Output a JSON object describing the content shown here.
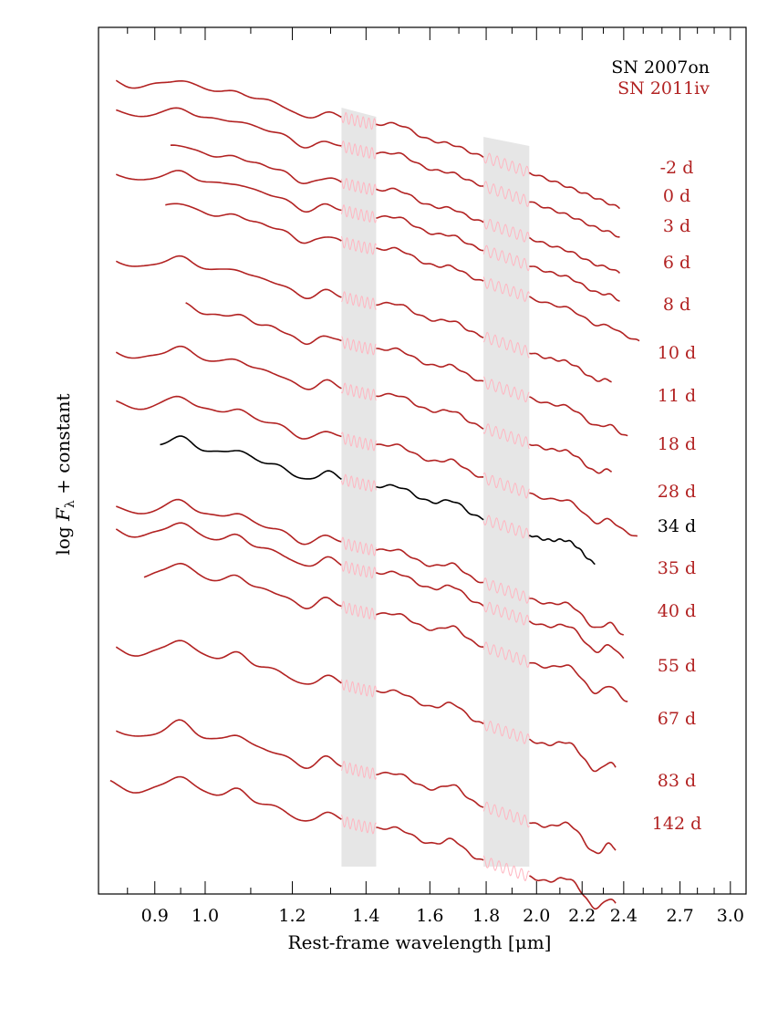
{
  "chart_data": {
    "type": "line",
    "xlabel": "Rest-frame wavelength [μm]",
    "ylabel_prefix": "log ",
    "ylabel_var": "F",
    "ylabel_sub": "λ",
    "ylabel_suffix": " + constant",
    "x_scale": "log",
    "xlim": [
      0.8,
      3.1
    ],
    "x_ticks": [
      "0.9",
      "1.0",
      "1.2",
      "1.4",
      "1.6",
      "1.8",
      "2.0",
      "2.2",
      "2.4",
      "2.7",
      "3.0"
    ],
    "x_tick_values": [
      0.9,
      1.0,
      1.2,
      1.4,
      1.6,
      1.8,
      2.0,
      2.2,
      2.4,
      2.7,
      3.0
    ],
    "x_minor_tick_values": [
      0.85,
      0.95,
      1.1,
      1.3,
      1.5,
      1.7,
      1.9,
      2.1,
      2.3,
      2.5,
      2.6,
      2.8,
      2.9
    ],
    "telluric_bands": [
      [
        1.33,
        1.43
      ],
      [
        1.79,
        1.97
      ]
    ],
    "colors": {
      "sn2011iv": "#b22222",
      "sn2007on": "#000000",
      "telluric": "#ffb6c1",
      "band": "#e6e6e6"
    },
    "legend": {
      "position": "top-right",
      "entries": [
        "SN 2007on",
        "SN 2011iv"
      ]
    },
    "series": [
      {
        "epoch": "-2 d",
        "object": "sn2011iv",
        "x_range": [
          0.83,
          2.38
        ]
      },
      {
        "epoch": "0 d",
        "object": "sn2011iv",
        "x_range": [
          0.83,
          2.38
        ]
      },
      {
        "epoch": "3 d",
        "object": "sn2011iv",
        "x_range": [
          0.93,
          2.38
        ]
      },
      {
        "epoch": "6 d",
        "object": "sn2011iv",
        "x_range": [
          0.83,
          2.38
        ]
      },
      {
        "epoch": "8 d",
        "object": "sn2011iv",
        "x_range": [
          0.92,
          2.48
        ]
      },
      {
        "epoch": "10 d",
        "object": "sn2011iv",
        "x_range": [
          0.83,
          2.34
        ]
      },
      {
        "epoch": "11 d",
        "object": "sn2011iv",
        "x_range": [
          0.96,
          2.42
        ]
      },
      {
        "epoch": "18 d",
        "object": "sn2011iv",
        "x_range": [
          0.83,
          2.34
        ]
      },
      {
        "epoch": "28 d",
        "object": "sn2011iv",
        "x_range": [
          0.83,
          2.47
        ]
      },
      {
        "epoch": "34 d",
        "object": "sn2007on",
        "x_range": [
          0.91,
          2.26
        ]
      },
      {
        "epoch": "35 d",
        "object": "sn2011iv",
        "x_range": [
          0.83,
          2.4
        ]
      },
      {
        "epoch": "40 d",
        "object": "sn2011iv",
        "x_range": [
          0.83,
          2.4
        ]
      },
      {
        "epoch": "55 d",
        "object": "sn2011iv",
        "x_range": [
          0.88,
          2.42
        ]
      },
      {
        "epoch": "67 d",
        "object": "sn2011iv",
        "x_range": [
          0.83,
          2.36
        ]
      },
      {
        "epoch": "83 d",
        "object": "sn2011iv",
        "x_range": [
          0.83,
          2.36
        ]
      },
      {
        "epoch": "142 d",
        "object": "sn2011iv",
        "x_range": [
          0.82,
          2.36
        ]
      }
    ]
  }
}
